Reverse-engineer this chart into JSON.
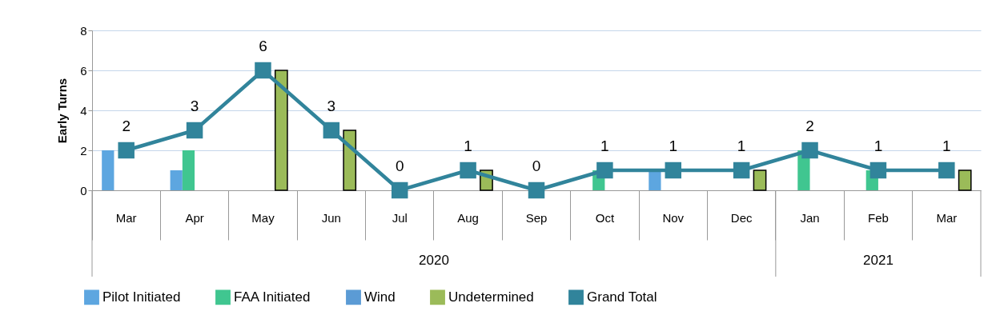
{
  "chart_data": {
    "type": "bar",
    "ylabel": "Early Turns",
    "categories": [
      "Mar",
      "Apr",
      "May",
      "Jun",
      "Jul",
      "Aug",
      "Sep",
      "Oct",
      "Nov",
      "Dec",
      "Jan",
      "Feb",
      "Mar"
    ],
    "annotations": [
      "2020",
      "2021"
    ],
    "series": [
      {
        "name": "Pilot Initiated",
        "color": "#5da6e0",
        "values": [
          2,
          1,
          0,
          0,
          0,
          0,
          0,
          0,
          1,
          0,
          0,
          0,
          0
        ]
      },
      {
        "name": "FAA Initiated",
        "color": "#40c690",
        "values": [
          0,
          2,
          0,
          0,
          0,
          0,
          0,
          1,
          0,
          0,
          2,
          1,
          0
        ]
      },
      {
        "name": "Wind",
        "color": "#5b9bd5",
        "values": [
          0,
          0,
          0,
          0,
          0,
          0,
          0,
          0,
          0,
          0,
          0,
          0,
          0
        ]
      },
      {
        "name": "Undetermined",
        "color": "#9bbb59",
        "values": [
          0,
          0,
          6,
          3,
          0,
          1,
          0,
          0,
          0,
          1,
          0,
          0,
          1
        ]
      },
      {
        "name": "Grand Total",
        "type": "line",
        "color": "#31849b",
        "marker": "square",
        "data_labels": true,
        "values": [
          2,
          3,
          6,
          3,
          0,
          1,
          0,
          1,
          1,
          1,
          2,
          1,
          1
        ]
      }
    ],
    "ylim": [
      0,
      8
    ],
    "yticks": [
      0,
      2,
      4,
      6,
      8
    ],
    "grid": "y",
    "legend": "bottom"
  }
}
